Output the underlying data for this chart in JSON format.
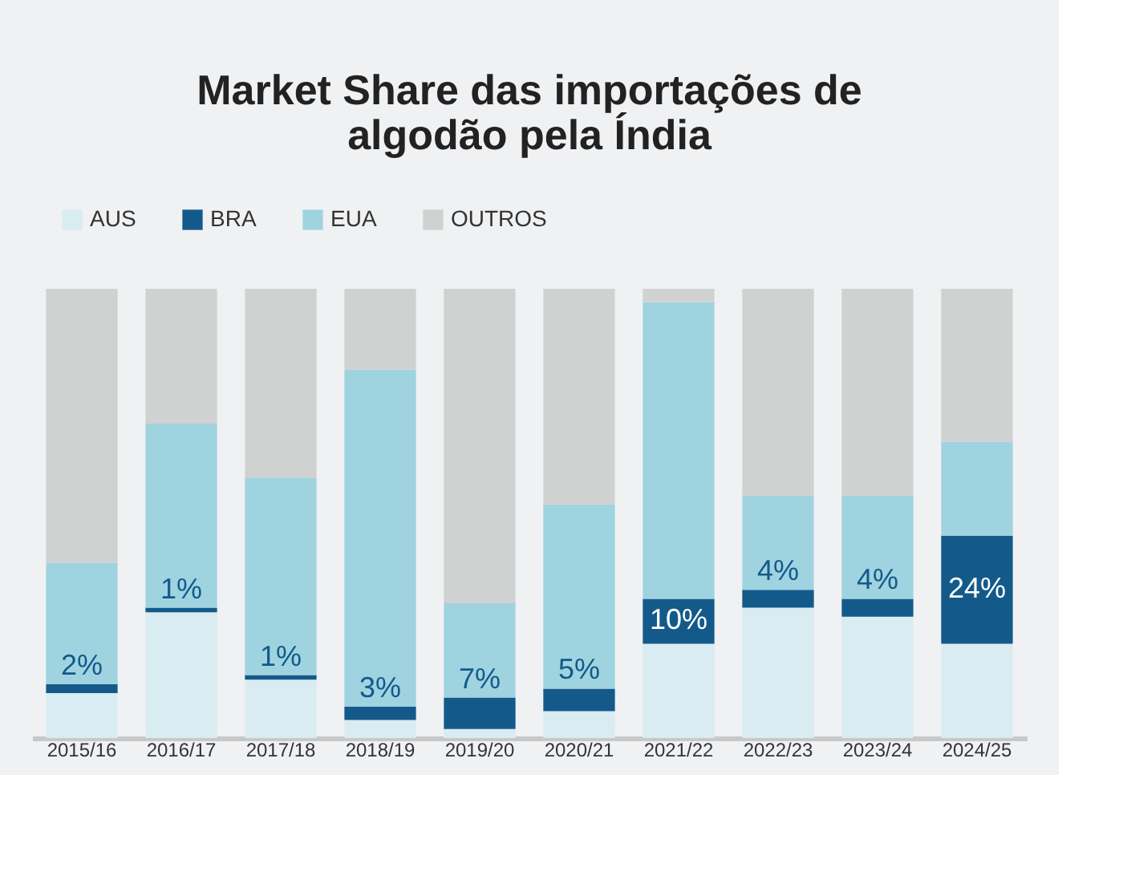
{
  "chart_data": {
    "type": "bar",
    "title": "Market Share das importações de\nalgodão pela Índia",
    "stacked": true,
    "categories": [
      "2015/16",
      "2016/17",
      "2017/18",
      "2018/19",
      "2019/20",
      "2020/21",
      "2021/22",
      "2022/23",
      "2023/24",
      "2024/25"
    ],
    "series": [
      {
        "name": "AUS",
        "color": "#d9ecf2",
        "values": [
          10,
          28,
          13,
          4,
          2,
          6,
          21,
          29,
          27,
          21
        ]
      },
      {
        "name": "BRA",
        "color": "#135a8a",
        "values": [
          2,
          1,
          1,
          3,
          7,
          5,
          10,
          4,
          4,
          24
        ],
        "value_labels": [
          "2%",
          "1%",
          "1%",
          "3%",
          "7%",
          "5%",
          "10%",
          "4%",
          "4%",
          "24%"
        ]
      },
      {
        "name": "EUA",
        "color": "#9fd3e0",
        "values": [
          27,
          41,
          44,
          75,
          21,
          41,
          66,
          21,
          23,
          21
        ]
      },
      {
        "name": "OUTROS",
        "color": "#d0d2d2",
        "values": [
          61,
          30,
          42,
          18,
          70,
          48,
          3,
          46,
          46,
          34
        ]
      }
    ],
    "ylim": [
      0,
      100
    ],
    "tick_labels": "x",
    "legend": "top",
    "grid": false
  }
}
